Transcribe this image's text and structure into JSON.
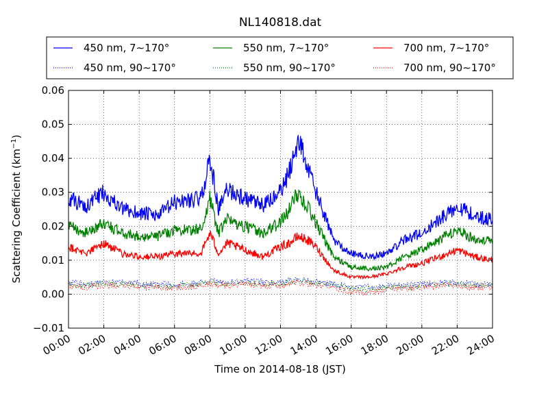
{
  "chart_data": {
    "type": "line",
    "title": "NL140818.dat",
    "xlabel": "Time on 2014-08-18 (JST)",
    "ylabel": "Scattering Coefficient (km",
    "ylabel_sup": "−1",
    "ylabel_close": ")",
    "xlim": [
      "00:00",
      "24:00"
    ],
    "ylim": [
      -0.01,
      0.06
    ],
    "grid": true,
    "legend": "top, above plot area, 3 columns",
    "x_ticks": [
      "00:00",
      "02:00",
      "04:00",
      "06:00",
      "08:00",
      "10:00",
      "12:00",
      "14:00",
      "16:00",
      "18:00",
      "20:00",
      "22:00",
      "24:00"
    ],
    "y_ticks": [
      "−0.01",
      "0.00",
      "0.01",
      "0.02",
      "0.03",
      "0.04",
      "0.05",
      "0.06"
    ],
    "x": [
      "00:00",
      "01:00",
      "02:00",
      "03:00",
      "04:00",
      "05:00",
      "06:00",
      "07:00",
      "07:30",
      "08:00",
      "08:30",
      "09:00",
      "10:00",
      "11:00",
      "12:00",
      "12:30",
      "13:00",
      "13:30",
      "14:00",
      "15:00",
      "16:00",
      "17:00",
      "18:00",
      "19:00",
      "20:00",
      "21:00",
      "22:00",
      "23:00",
      "24:00"
    ],
    "series": [
      {
        "name": "450 nm, 7∼170°",
        "color": "#0000ff",
        "style": "solid",
        "values": [
          0.028,
          0.026,
          0.03,
          0.025,
          0.024,
          0.023,
          0.027,
          0.028,
          0.028,
          0.04,
          0.025,
          0.031,
          0.028,
          0.026,
          0.03,
          0.036,
          0.046,
          0.038,
          0.03,
          0.016,
          0.012,
          0.011,
          0.012,
          0.016,
          0.018,
          0.022,
          0.026,
          0.023,
          0.022
        ]
      },
      {
        "name": "450 nm, 90∼170°",
        "color": "#0000ff",
        "style": "dotted",
        "values": [
          0.0035,
          0.003,
          0.0035,
          0.0035,
          0.003,
          0.003,
          0.003,
          0.003,
          0.0035,
          0.004,
          0.0035,
          0.0035,
          0.004,
          0.0035,
          0.0035,
          0.004,
          0.0045,
          0.004,
          0.0035,
          0.003,
          0.002,
          0.002,
          0.0025,
          0.0025,
          0.003,
          0.0035,
          0.0035,
          0.003,
          0.003
        ]
      },
      {
        "name": "550 nm, 7∼170°",
        "color": "#008000",
        "style": "solid",
        "values": [
          0.02,
          0.018,
          0.021,
          0.018,
          0.017,
          0.017,
          0.019,
          0.019,
          0.019,
          0.028,
          0.018,
          0.022,
          0.02,
          0.018,
          0.021,
          0.025,
          0.03,
          0.026,
          0.021,
          0.011,
          0.008,
          0.0075,
          0.008,
          0.011,
          0.013,
          0.016,
          0.019,
          0.016,
          0.016
        ]
      },
      {
        "name": "550 nm, 90∼170°",
        "color": "#008000",
        "style": "dotted",
        "values": [
          0.003,
          0.0025,
          0.003,
          0.003,
          0.0025,
          0.0025,
          0.0025,
          0.0025,
          0.003,
          0.0035,
          0.003,
          0.003,
          0.0035,
          0.003,
          0.003,
          0.0035,
          0.004,
          0.0035,
          0.003,
          0.0025,
          0.0015,
          0.0015,
          0.002,
          0.002,
          0.0025,
          0.003,
          0.003,
          0.0025,
          0.0025
        ]
      },
      {
        "name": "700 nm, 7∼170°",
        "color": "#ff0000",
        "style": "solid",
        "values": [
          0.014,
          0.012,
          0.015,
          0.012,
          0.011,
          0.011,
          0.012,
          0.012,
          0.012,
          0.018,
          0.012,
          0.015,
          0.013,
          0.011,
          0.014,
          0.015,
          0.017,
          0.016,
          0.014,
          0.007,
          0.005,
          0.005,
          0.006,
          0.008,
          0.009,
          0.011,
          0.013,
          0.011,
          0.01
        ]
      },
      {
        "name": "700 nm, 90∼170°",
        "color": "#ff0000",
        "style": "dotted",
        "values": [
          0.0025,
          0.002,
          0.0025,
          0.0025,
          0.002,
          0.002,
          0.002,
          0.002,
          0.0025,
          0.003,
          0.0025,
          0.0025,
          0.003,
          0.0025,
          0.0025,
          0.003,
          0.0035,
          0.003,
          0.0025,
          0.002,
          0.0005,
          0.0005,
          0.0015,
          0.0015,
          0.002,
          0.0025,
          0.0025,
          0.002,
          0.002
        ]
      }
    ]
  }
}
